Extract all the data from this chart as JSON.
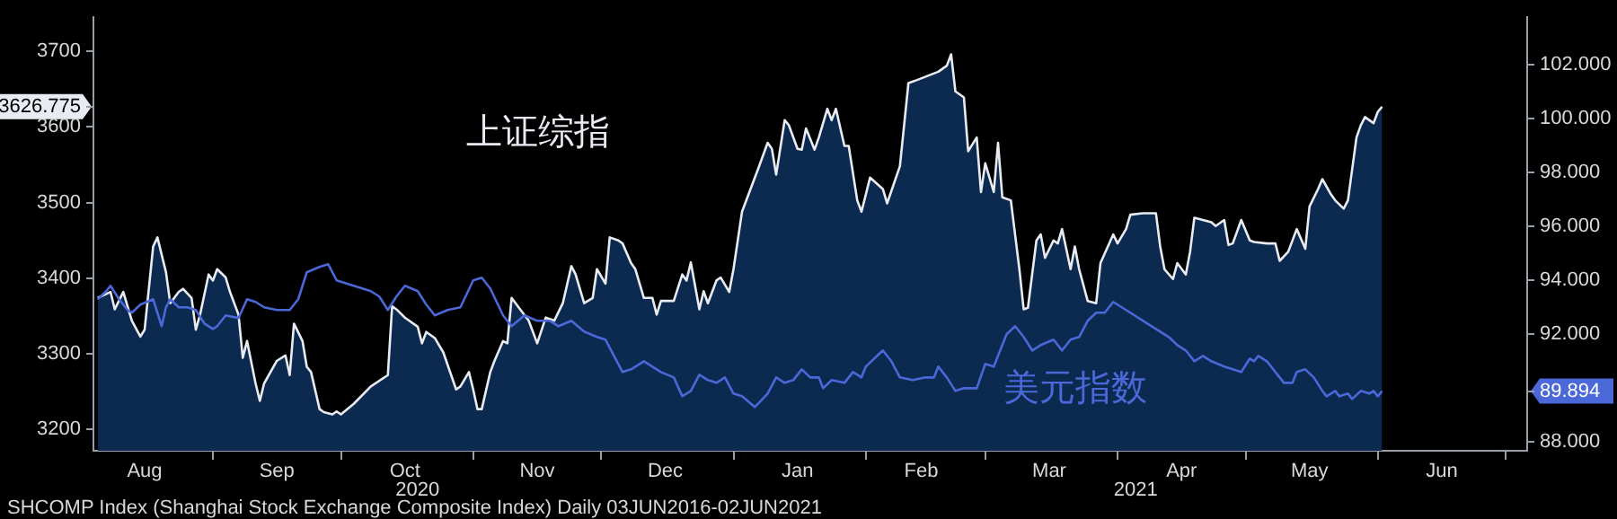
{
  "chart_data": {
    "type": "line",
    "xlim": [
      "2020-08-04",
      "2021-07-06"
    ],
    "xticks": [
      {
        "value": "2020-08-16",
        "label": "Aug"
      },
      {
        "value": "2020-09-01",
        "label": null
      },
      {
        "value": "2020-09-16",
        "label": "Sep"
      },
      {
        "value": "2020-10-01",
        "label": null
      },
      {
        "value": "2020-10-16",
        "label": "Oct"
      },
      {
        "value": "2020-11-01",
        "label": null
      },
      {
        "value": "2020-11-16",
        "label": "Nov"
      },
      {
        "value": "2020-12-01",
        "label": null
      },
      {
        "value": "2020-12-16",
        "label": "Dec"
      },
      {
        "value": "2021-01-01",
        "label": null
      },
      {
        "value": "2021-01-16",
        "label": "Jan"
      },
      {
        "value": "2021-02-01",
        "label": null
      },
      {
        "value": "2021-02-14",
        "label": "Feb"
      },
      {
        "value": "2021-03-01",
        "label": null
      },
      {
        "value": "2021-03-16",
        "label": "Mar"
      },
      {
        "value": "2021-04-01",
        "label": null
      },
      {
        "value": "2021-04-16",
        "label": "Apr"
      },
      {
        "value": "2021-05-01",
        "label": null
      },
      {
        "value": "2021-05-16",
        "label": "May"
      },
      {
        "value": "2021-06-01",
        "label": null
      },
      {
        "value": "2021-06-16",
        "label": "Jun"
      },
      {
        "value": "2021-07-01",
        "label": null
      }
    ],
    "ylim": [
      3172,
      3745
    ],
    "yticks": [
      3200,
      3300,
      3400,
      3500,
      3600,
      3626.775,
      3700
    ],
    "y2lim": [
      87.68,
      103.76
    ],
    "y2ticks": [
      {
        "value": 88,
        "label": "88.000"
      },
      {
        "value": 89.894,
        "label": "89.894"
      },
      {
        "value": 92,
        "label": "92.000"
      },
      {
        "value": 94,
        "label": "94.000"
      },
      {
        "value": 96,
        "label": "96.000"
      },
      {
        "value": 98,
        "label": "98.000"
      },
      {
        "value": 100,
        "label": "100.000"
      },
      {
        "value": 102,
        "label": "102.000"
      }
    ],
    "grid": false,
    "legend": false,
    "annotations": [
      "2020",
      "2021",
      "SHCOMP Index (Shanghai Stock Exchange Composite Index) Daily 03JUN2016-02JUN2021"
    ],
    "series": [
      {
        "name": "上证综指",
        "type": "area",
        "color": "#0c2a4f",
        "x": [
          "2020-08-05",
          "2020-08-08",
          "2020-08-09",
          "2020-08-11",
          "2020-08-13",
          "2020-08-15",
          "2020-08-16",
          "2020-08-18",
          "2020-08-19",
          "2020-08-21",
          "2020-08-22",
          "2020-08-24",
          "2020-08-25",
          "2020-08-27",
          "2020-08-28",
          "2020-08-29",
          "2020-08-31",
          "2020-09-01",
          "2020-09-02",
          "2020-09-04",
          "2020-09-05",
          "2020-09-07",
          "2020-09-08",
          "2020-09-09",
          "2020-09-11",
          "2020-09-12",
          "2020-09-13",
          "2020-09-16",
          "2020-09-18",
          "2020-09-19",
          "2020-09-20",
          "2020-09-22",
          "2020-09-23",
          "2020-09-24",
          "2020-09-26",
          "2020-09-27",
          "2020-09-29",
          "2020-09-30",
          "2020-10-01",
          "2020-10-04",
          "2020-10-08",
          "2020-10-12",
          "2020-10-13",
          "2020-10-14",
          "2020-10-16",
          "2020-10-19",
          "2020-10-20",
          "2020-10-21",
          "2020-10-23",
          "2020-10-25",
          "2020-10-28",
          "2020-10-29",
          "2020-10-31",
          "2020-11-01",
          "2020-11-02",
          "2020-11-03",
          "2020-11-05",
          "2020-11-06",
          "2020-11-08",
          "2020-11-09",
          "2020-11-10",
          "2020-11-12",
          "2020-11-14",
          "2020-11-16",
          "2020-11-18",
          "2020-11-20",
          "2020-11-22",
          "2020-11-24",
          "2020-11-25",
          "2020-11-27",
          "2020-11-29",
          "2020-11-30",
          "2020-12-02",
          "2020-12-03",
          "2020-12-05",
          "2020-12-06",
          "2020-12-08",
          "2020-12-09",
          "2020-12-11",
          "2020-12-13",
          "2020-12-14",
          "2020-12-15",
          "2020-12-18",
          "2020-12-20",
          "2020-12-21",
          "2020-12-22",
          "2020-12-24",
          "2020-12-25",
          "2020-12-26",
          "2020-12-28",
          "2020-12-29",
          "2020-12-31",
          "2021-01-01",
          "2021-01-03",
          "2021-01-05",
          "2021-01-07",
          "2021-01-09",
          "2021-01-10",
          "2021-01-11",
          "2021-01-13",
          "2021-01-14",
          "2021-01-16",
          "2021-01-17",
          "2021-01-18",
          "2021-01-20",
          "2021-01-21",
          "2021-01-23",
          "2021-01-24",
          "2021-01-25",
          "2021-01-27",
          "2021-01-28",
          "2021-01-30",
          "2021-01-31",
          "2021-02-02",
          "2021-02-05",
          "2021-02-06",
          "2021-02-09",
          "2021-02-11",
          "2021-02-13",
          "2021-02-18",
          "2021-02-20",
          "2021-02-21",
          "2021-02-22",
          "2021-02-24",
          "2021-02-25",
          "2021-02-27",
          "2021-02-28",
          "2021-03-01",
          "2021-03-03",
          "2021-03-04",
          "2021-03-05",
          "2021-03-07",
          "2021-03-09",
          "2021-03-10",
          "2021-03-11",
          "2021-03-13",
          "2021-03-14",
          "2021-03-15",
          "2021-03-17",
          "2021-03-18",
          "2021-03-19",
          "2021-03-21",
          "2021-03-22",
          "2021-03-23",
          "2021-03-25",
          "2021-03-27",
          "2021-03-28",
          "2021-03-31",
          "2021-04-01",
          "2021-04-03",
          "2021-04-04",
          "2021-04-07",
          "2021-04-10",
          "2021-04-11",
          "2021-04-12",
          "2021-04-14",
          "2021-04-15",
          "2021-04-17",
          "2021-04-18",
          "2021-04-19",
          "2021-04-21",
          "2021-04-23",
          "2021-04-24",
          "2021-04-26",
          "2021-04-27",
          "2021-04-28",
          "2021-04-30",
          "2021-05-02",
          "2021-05-03",
          "2021-05-06",
          "2021-05-08",
          "2021-05-09",
          "2021-05-11",
          "2021-05-13",
          "2021-05-15",
          "2021-05-16",
          "2021-05-18",
          "2021-05-19",
          "2021-05-21",
          "2021-05-22",
          "2021-05-24",
          "2021-05-25",
          "2021-05-27",
          "2021-05-28",
          "2021-05-29",
          "2021-05-31",
          "2021-06-01",
          "2021-06-02"
        ],
        "values": [
          3374,
          3382,
          3359,
          3382,
          3344,
          3323,
          3332,
          3442,
          3454,
          3408,
          3367,
          3382,
          3386,
          3374,
          3332,
          3352,
          3405,
          3397,
          3412,
          3401,
          3382,
          3352,
          3295,
          3317,
          3261,
          3238,
          3261,
          3291,
          3298,
          3272,
          3340,
          3317,
          3283,
          3276,
          3227,
          3223,
          3220,
          3224,
          3220,
          3234,
          3257,
          3272,
          3363,
          3359,
          3348,
          3336,
          3314,
          3329,
          3321,
          3302,
          3253,
          3257,
          3276,
          3253,
          3227,
          3227,
          3276,
          3291,
          3317,
          3314,
          3374,
          3359,
          3344,
          3314,
          3348,
          3344,
          3367,
          3416,
          3405,
          3367,
          3374,
          3412,
          3393,
          3454,
          3450,
          3446,
          3420,
          3412,
          3374,
          3374,
          3352,
          3370,
          3370,
          3405,
          3397,
          3421,
          3359,
          3383,
          3367,
          3397,
          3401,
          3382,
          3412,
          3488,
          3518,
          3548,
          3579,
          3571,
          3537,
          3609,
          3602,
          3571,
          3570,
          3598,
          3570,
          3586,
          3624,
          3609,
          3624,
          3575,
          3575,
          3503,
          3488,
          3533,
          3518,
          3499,
          3548,
          3658,
          3662,
          3673,
          3681,
          3696,
          3647,
          3639,
          3568,
          3586,
          3514,
          3552,
          3514,
          3579,
          3507,
          3503,
          3412,
          3359,
          3361,
          3450,
          3458,
          3427,
          3450,
          3446,
          3465,
          3412,
          3442,
          3412,
          3370,
          3367,
          3420,
          3458,
          3446,
          3465,
          3484,
          3486,
          3486,
          3442,
          3412,
          3399,
          3420,
          3405,
          3435,
          3480,
          3477,
          3474,
          3469,
          3477,
          3444,
          3446,
          3477,
          3450,
          3448,
          3446,
          3446,
          3423,
          3435,
          3465,
          3439,
          3495,
          3518,
          3531,
          3511,
          3503,
          3492,
          3503,
          3586,
          3602,
          3613,
          3605,
          3620,
          3626.775
        ]
      },
      {
        "name": "美元指数",
        "type": "line",
        "axis": "y2",
        "color": "#4a68d8",
        "x": [
          "2020-08-05",
          "2020-08-07",
          "2020-08-08",
          "2020-08-10",
          "2020-08-12",
          "2020-08-13",
          "2020-08-15",
          "2020-08-18",
          "2020-08-20",
          "2020-08-21",
          "2020-08-22",
          "2020-08-24",
          "2020-08-26",
          "2020-08-28",
          "2020-08-30",
          "2020-09-01",
          "2020-09-02",
          "2020-09-04",
          "2020-09-07",
          "2020-09-09",
          "2020-09-11",
          "2020-09-13",
          "2020-09-16",
          "2020-09-19",
          "2020-09-21",
          "2020-09-23",
          "2020-09-26",
          "2020-09-28",
          "2020-09-30",
          "2020-10-02",
          "2020-10-04",
          "2020-10-06",
          "2020-10-08",
          "2020-10-10",
          "2020-10-12",
          "2020-10-14",
          "2020-10-16",
          "2020-10-19",
          "2020-10-21",
          "2020-10-23",
          "2020-10-26",
          "2020-10-29",
          "2020-11-01",
          "2020-11-03",
          "2020-11-05",
          "2020-11-08",
          "2020-11-10",
          "2020-11-13",
          "2020-11-16",
          "2020-11-19",
          "2020-11-21",
          "2020-11-24",
          "2020-11-27",
          "2020-11-30",
          "2020-12-02",
          "2020-12-04",
          "2020-12-06",
          "2020-12-08",
          "2020-12-11",
          "2020-12-13",
          "2020-12-15",
          "2020-12-18",
          "2020-12-20",
          "2020-12-22",
          "2020-12-24",
          "2020-12-26",
          "2020-12-28",
          "2020-12-30",
          "2021-01-01",
          "2021-01-03",
          "2021-01-06",
          "2021-01-09",
          "2021-01-11",
          "2021-01-13",
          "2021-01-15",
          "2021-01-17",
          "2021-01-19",
          "2021-01-21",
          "2021-01-22",
          "2021-01-24",
          "2021-01-27",
          "2021-01-29",
          "2021-01-31",
          "2021-02-01",
          "2021-02-03",
          "2021-02-05",
          "2021-02-07",
          "2021-02-09",
          "2021-02-12",
          "2021-02-15",
          "2021-02-17",
          "2021-02-18",
          "2021-02-20",
          "2021-02-22",
          "2021-02-24",
          "2021-02-27",
          "2021-03-01",
          "2021-03-03",
          "2021-03-05",
          "2021-03-06",
          "2021-03-08",
          "2021-03-10",
          "2021-03-12",
          "2021-03-14",
          "2021-03-17",
          "2021-03-19",
          "2021-03-21",
          "2021-03-23",
          "2021-03-25",
          "2021-03-27",
          "2021-03-29",
          "2021-03-31",
          "2021-04-01",
          "2021-04-03",
          "2021-04-05",
          "2021-04-07",
          "2021-04-09",
          "2021-04-11",
          "2021-04-13",
          "2021-04-15",
          "2021-04-17",
          "2021-04-19",
          "2021-04-21",
          "2021-04-23",
          "2021-04-26",
          "2021-04-28",
          "2021-04-30",
          "2021-05-02",
          "2021-05-03",
          "2021-05-04",
          "2021-05-06",
          "2021-05-08",
          "2021-05-10",
          "2021-05-12",
          "2021-05-13",
          "2021-05-15",
          "2021-05-17",
          "2021-05-19",
          "2021-05-20",
          "2021-05-22",
          "2021-05-23",
          "2021-05-25",
          "2021-05-26",
          "2021-05-28",
          "2021-05-30",
          "2021-05-31",
          "2021-06-01",
          "2021-06-02"
        ],
        "values": [
          93.3,
          93.6,
          93.8,
          93.3,
          92.9,
          92.8,
          93.1,
          93.3,
          92.3,
          93.0,
          93.3,
          93.0,
          93.0,
          92.9,
          92.4,
          92.2,
          92.3,
          92.7,
          92.6,
          93.3,
          93.2,
          93.0,
          92.9,
          92.9,
          93.3,
          94.3,
          94.5,
          94.6,
          94.0,
          93.9,
          93.8,
          93.7,
          93.6,
          93.4,
          92.9,
          93.4,
          93.8,
          93.6,
          93.1,
          92.7,
          92.9,
          93.0,
          94.0,
          94.1,
          93.7,
          92.7,
          92.3,
          92.7,
          92.5,
          92.5,
          92.3,
          92.5,
          92.1,
          91.9,
          91.8,
          91.2,
          90.6,
          90.7,
          91.0,
          90.8,
          90.6,
          90.4,
          89.7,
          89.9,
          90.5,
          90.3,
          90.2,
          90.4,
          89.8,
          89.7,
          89.3,
          89.8,
          90.4,
          90.2,
          90.3,
          90.7,
          90.4,
          90.4,
          90.0,
          90.3,
          90.2,
          90.6,
          90.4,
          90.8,
          91.1,
          91.4,
          91.0,
          90.4,
          90.3,
          90.4,
          90.4,
          90.8,
          90.4,
          89.9,
          90.0,
          90.0,
          90.9,
          90.8,
          91.6,
          92.0,
          92.3,
          91.9,
          91.4,
          91.6,
          91.8,
          91.4,
          91.8,
          91.9,
          92.5,
          92.8,
          92.8,
          93.2,
          93.1,
          92.9,
          92.7,
          92.5,
          92.3,
          92.1,
          91.9,
          91.6,
          91.4,
          91.0,
          91.2,
          91.0,
          90.8,
          90.7,
          90.6,
          91.1,
          91.0,
          91.2,
          91.0,
          90.6,
          90.2,
          90.2,
          90.6,
          90.7,
          90.4,
          89.9,
          89.7,
          89.9,
          89.7,
          89.8,
          89.6,
          89.9,
          89.8,
          89.9,
          89.7,
          89.894
        ]
      }
    ]
  }
}
